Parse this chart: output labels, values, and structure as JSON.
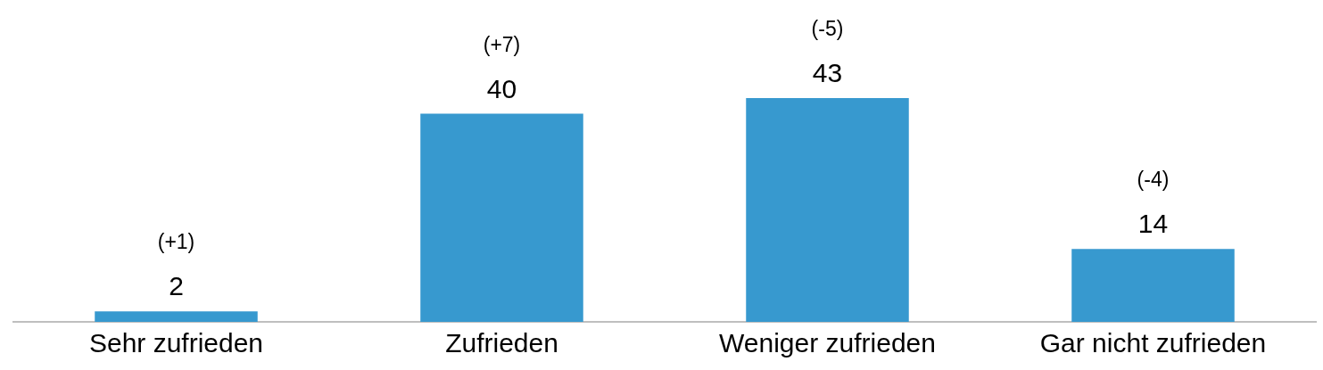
{
  "chart_data": {
    "type": "bar",
    "categories": [
      "Sehr zufrieden",
      "Zufrieden",
      "Weniger zufrieden",
      "Gar nicht zufrieden"
    ],
    "values": [
      2,
      40,
      43,
      14
    ],
    "color": "#3799cf",
    "data_labels": true,
    "grid": false,
    "legend": false,
    "tick_labels": "x",
    "annotations": [
      {
        "text": "(+1)",
        "x": "Sehr zufrieden",
        "y": 2
      },
      {
        "text": "(+7)",
        "x": "Zufrieden",
        "y": 40
      },
      {
        "text": "(-5)",
        "x": "Weniger zufrieden",
        "y": 43
      },
      {
        "text": "(-4)",
        "x": "Gar nicht zufrieden",
        "y": 14
      }
    ]
  }
}
